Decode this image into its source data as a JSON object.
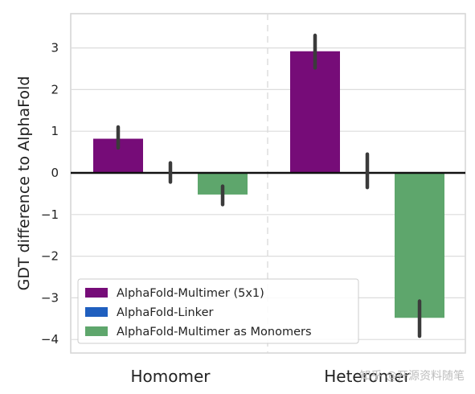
{
  "chart_data": {
    "type": "bar",
    "categories": [
      "Homomer",
      "Heteromer"
    ],
    "ylabel": "GDT difference to AlphaFold",
    "xlabel": "",
    "ylim": [
      -4.25,
      3.75
    ],
    "yticks": [
      3,
      2,
      1,
      0,
      -1,
      -2,
      -3,
      -4
    ],
    "ytick_labels": [
      "3",
      "2",
      "1",
      "0",
      "−1",
      "−2",
      "−3",
      "−4"
    ],
    "grid": true,
    "legend_position": "lower-left",
    "series": [
      {
        "name": "AlphaFold-Multimer (5x1)",
        "color": "#760c78",
        "values": [
          0.82,
          2.92
        ],
        "error": [
          [
            0.6,
            1.1
          ],
          [
            2.52,
            3.3
          ]
        ]
      },
      {
        "name": "AlphaFold-Linker",
        "color": "#1f5fbf",
        "values": [
          0.0,
          0.0
        ],
        "error": [
          [
            -0.22,
            0.24
          ],
          [
            -0.35,
            0.45
          ]
        ]
      },
      {
        "name": "AlphaFold-Multimer as Monomers",
        "color": "#5ea66c",
        "values": [
          -0.52,
          -3.48
        ],
        "error": [
          [
            -0.76,
            -0.32
          ],
          [
            -3.92,
            -3.08
          ]
        ]
      }
    ]
  },
  "watermark": "知乎 @开源资料随笔"
}
